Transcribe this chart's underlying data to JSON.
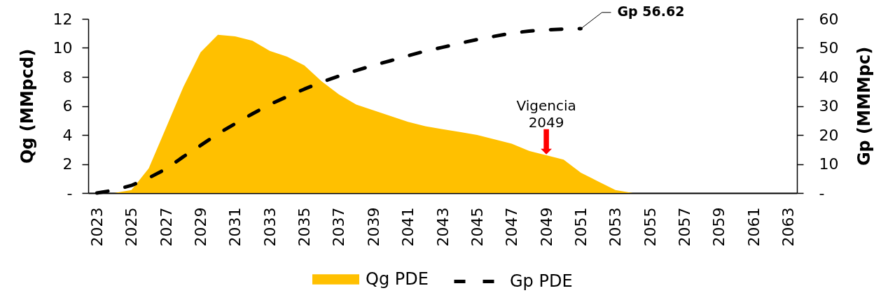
{
  "chart_data": {
    "type": "area",
    "x": [
      2023,
      2024,
      2025,
      2026,
      2027,
      2028,
      2029,
      2030,
      2031,
      2032,
      2033,
      2034,
      2035,
      2036,
      2037,
      2038,
      2039,
      2040,
      2041,
      2042,
      2043,
      2044,
      2045,
      2046,
      2047,
      2048,
      2049,
      2050,
      2051,
      2052,
      2053,
      2054,
      2055,
      2056,
      2057,
      2058,
      2059,
      2060,
      2061,
      2062,
      2063
    ],
    "xlim": [
      2022.5,
      2063.5
    ],
    "xticks": [
      2023,
      2025,
      2027,
      2029,
      2031,
      2033,
      2035,
      2037,
      2039,
      2041,
      2043,
      2045,
      2047,
      2049,
      2051,
      2053,
      2055,
      2057,
      2059,
      2061,
      2063
    ],
    "ylabel": "Qg (MMpcd)",
    "y2label": "Gp (MMMpc)",
    "ylim": [
      0,
      12
    ],
    "yticks": [
      {
        "value": 0,
        "label": "-"
      },
      2,
      4,
      6,
      8,
      10,
      12
    ],
    "y2lim": [
      0,
      60
    ],
    "y2ticks": [
      {
        "value": 0,
        "label": "-"
      },
      10,
      20,
      30,
      40,
      50,
      60
    ],
    "series": [
      {
        "name": "Qg PDE",
        "color": "#ffc000",
        "values": [
          0,
          0,
          0.2,
          1.7,
          4.5,
          7.3,
          9.7,
          10.9,
          10.8,
          10.5,
          9.8,
          9.4,
          8.8,
          7.7,
          6.8,
          6.1,
          5.7,
          5.3,
          4.9,
          4.6,
          4.4,
          4.2,
          4.0,
          3.7,
          3.4,
          2.9,
          2.6,
          2.3,
          1.4,
          0.8,
          0.2,
          0,
          0,
          0,
          0,
          0,
          0,
          0,
          0,
          0,
          0
        ]
      },
      {
        "name": "Gp PDE",
        "type": "line",
        "axis": "y2",
        "color": "#000000",
        "line_style": "dashed",
        "values": [
          0,
          1.0,
          2.6,
          5.2,
          8.3,
          12.5,
          16.4,
          20.4,
          23.9,
          27.3,
          30.5,
          33.2,
          35.8,
          38.2,
          40.3,
          42.2,
          44.0,
          45.6,
          47.3,
          48.9,
          50.2,
          51.6,
          52.9,
          54.0,
          55.1,
          55.8,
          56.2,
          56.5,
          56.62,
          null,
          null,
          null,
          null,
          null,
          null,
          null,
          null,
          null,
          null,
          null,
          null
        ],
        "value_labels": [
          null,
          null,
          null,
          null,
          null,
          null,
          null,
          null,
          null,
          null,
          null,
          null,
          null,
          null,
          null,
          null,
          null,
          null,
          null,
          null,
          null,
          null,
          null,
          null,
          null,
          null,
          null,
          null,
          "Gp 56.62",
          null,
          null,
          null,
          null,
          null,
          null,
          null,
          null,
          null,
          null,
          null,
          null
        ]
      }
    ],
    "annotations": [
      {
        "text": "Vigencia 2049",
        "x": 2049,
        "y": 2.66
      }
    ],
    "legend": "bottom"
  }
}
